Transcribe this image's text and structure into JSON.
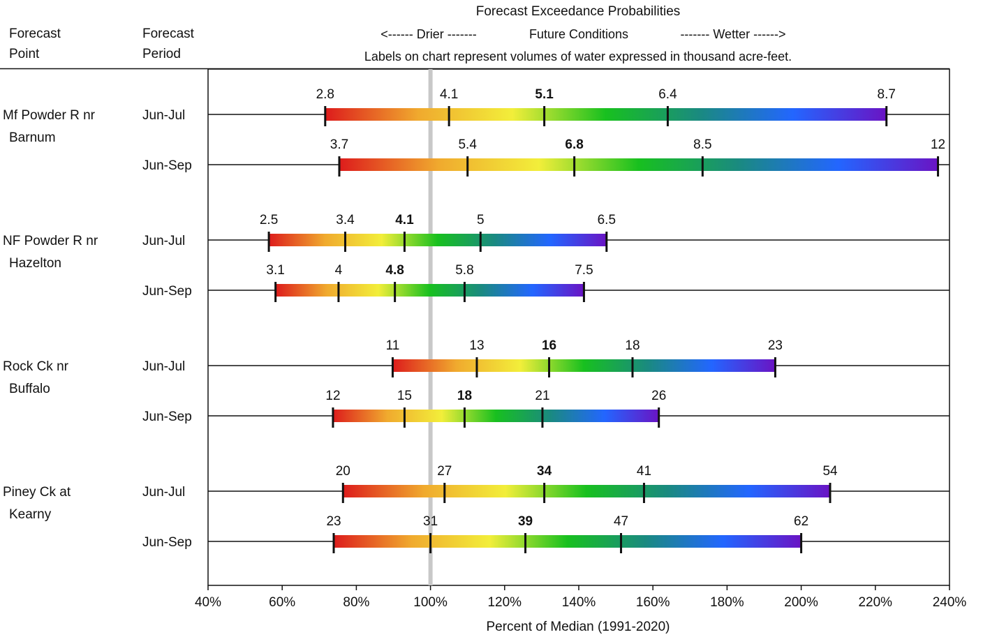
{
  "header": {
    "col_point": [
      "Forecast",
      "Point"
    ],
    "col_period": [
      "Forecast",
      "Period"
    ],
    "title": "Forecast Exceedance Probabilities",
    "arrow_drier": "<------ Drier -------",
    "future": "Future Conditions",
    "arrow_wetter": "------- Wetter ------>",
    "note": "Labels on chart represent volumes of water expressed in thousand acre-feet."
  },
  "colors": {
    "scale": [
      "#dd1c1c",
      "#f0aa2e",
      "#f2ee3a",
      "#18c01f",
      "#1a8a80",
      "#2366ff",
      "#6a14c4"
    ],
    "median_line": "#c8c8c8"
  },
  "chart_data": {
    "type": "range-bar",
    "xlabel": "Percent of Median (1991-2020)",
    "xlim": [
      40,
      240
    ],
    "xticks": [
      "40%",
      "60%",
      "80%",
      "100%",
      "120%",
      "140%",
      "160%",
      "180%",
      "200%",
      "220%",
      "240%"
    ],
    "median_marker": 100,
    "groups": [
      {
        "point": [
          "Mf Powder R nr",
          "Barnum"
        ],
        "rows": [
          {
            "period": "Jun-Jul",
            "pct": [
              71.6,
              105,
              130.7,
              164,
              223
            ],
            "labels": [
              "2.8",
              "4.1",
              "5.1",
              "6.4",
              "8.7"
            ]
          },
          {
            "period": "Jun-Sep",
            "pct": [
              75.4,
              110,
              138.8,
              173.4,
              236.9
            ],
            "labels": [
              "3.7",
              "5.4",
              "6.8",
              "8.5",
              "12"
            ]
          }
        ]
      },
      {
        "point": [
          "NF Powder R nr",
          "Hazelton"
        ],
        "rows": [
          {
            "period": "Jun-Jul",
            "pct": [
              56.4,
              77,
              93,
              113.5,
              147.5
            ],
            "labels": [
              "2.5",
              "3.4",
              "4.1",
              "5",
              "6.5"
            ]
          },
          {
            "period": "Jun-Sep",
            "pct": [
              58.2,
              75.2,
              90.4,
              109.2,
              141.4
            ],
            "labels": [
              "3.1",
              "4",
              "4.8",
              "5.8",
              "7.5"
            ]
          }
        ]
      },
      {
        "point": [
          "Rock Ck nr",
          "Buffalo"
        ],
        "rows": [
          {
            "period": "Jun-Jul",
            "pct": [
              89.8,
              112.5,
              132,
              154.5,
              193
            ],
            "labels": [
              "11",
              "13",
              "16",
              "18",
              "23"
            ]
          },
          {
            "period": "Jun-Sep",
            "pct": [
              73.7,
              93,
              109.2,
              130.2,
              161.6
            ],
            "labels": [
              "12",
              "15",
              "18",
              "21",
              "26"
            ]
          }
        ]
      },
      {
        "point": [
          "Piney Ck at",
          "Kearny"
        ],
        "rows": [
          {
            "period": "Jun-Jul",
            "pct": [
              76.4,
              103.8,
              130.7,
              157.6,
              207.8
            ],
            "labels": [
              "20",
              "27",
              "34",
              "41",
              "54"
            ]
          },
          {
            "period": "Jun-Sep",
            "pct": [
              73.9,
              100,
              125.6,
              151.4,
              200
            ],
            "labels": [
              "23",
              "31",
              "39",
              "47",
              "62"
            ]
          }
        ]
      }
    ]
  }
}
